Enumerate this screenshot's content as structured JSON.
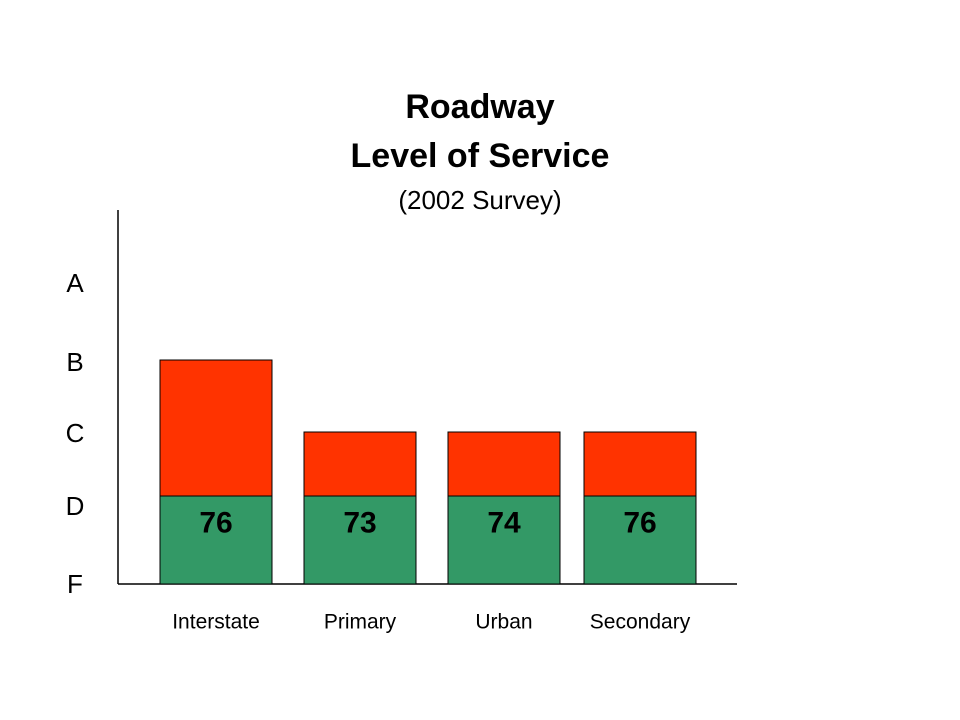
{
  "chart_data": {
    "type": "bar",
    "title": "Roadway",
    "subtitle": "Level of Service",
    "note": "(2002 Survey)",
    "categories": [
      "Interstate",
      "Primary",
      "Urban",
      "Secondary"
    ],
    "y_categories": [
      "F",
      "D",
      "C",
      "B",
      "A"
    ],
    "series": [
      {
        "values": [
          "D",
          "D",
          "D",
          "D"
        ],
        "color": "#339966"
      },
      {
        "values": [
          "B",
          "C",
          "C",
          "C"
        ],
        "color": "#ff3300"
      }
    ],
    "data_labels": [
      "76",
      "73",
      "74",
      "76"
    ],
    "grid": false
  }
}
